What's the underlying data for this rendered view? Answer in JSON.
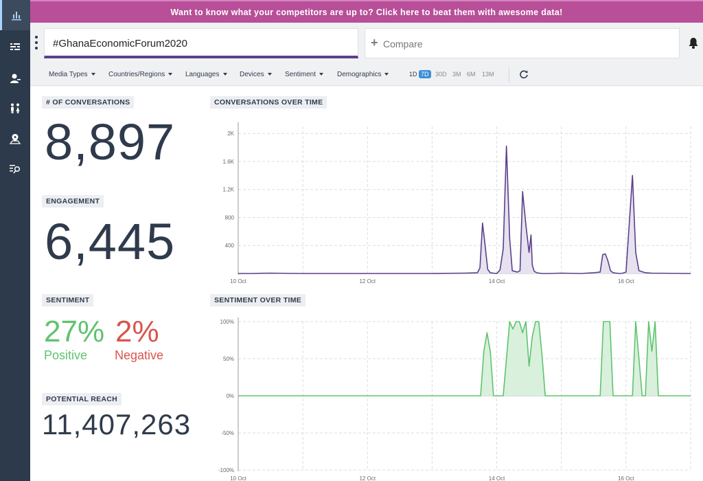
{
  "sidebar": {
    "items": [
      {
        "icon": "bar-chart-icon",
        "active": true
      },
      {
        "icon": "stream-icon",
        "active": false
      },
      {
        "icon": "user-profile-icon",
        "active": false
      },
      {
        "icon": "people-icon",
        "active": false
      },
      {
        "icon": "map-pin-icon",
        "active": false
      },
      {
        "icon": "list-search-icon",
        "active": false
      }
    ]
  },
  "banner": {
    "text": "Want to know what your competitors are up to? Click here to beat them with awesome data!"
  },
  "search": {
    "query": "#GhanaEconomicForum2020",
    "compare_label": "Compare",
    "compare_icon": "plus-icon"
  },
  "filters": [
    "Media Types",
    "Countries/Regions",
    "Languages",
    "Devices",
    "Sentiment",
    "Demographics"
  ],
  "ranges": [
    "1D",
    "7D",
    "30D",
    "3M",
    "6M",
    "13M"
  ],
  "active_range": "7D",
  "stats": {
    "conversations_label": "# OF CONVERSATIONS",
    "conversations_value": "8,897",
    "engagement_label": "ENGAGEMENT",
    "engagement_value": "6,445",
    "sentiment_label": "SENTIMENT",
    "positive_pct": "27%",
    "positive_label": "Positive",
    "negative_pct": "2%",
    "negative_label": "Negative",
    "reach_label": "POTENTIAL REACH",
    "reach_value": "11,407,263"
  },
  "colors": {
    "accent": "#5b3f8c",
    "banner": "#b84f98",
    "positive": "#5fc36e",
    "negative": "#d9544d",
    "sidebar": "#2d3a4b",
    "active_range": "#3a8fd8"
  },
  "chart_data": [
    {
      "type": "area",
      "title": "CONVERSATIONS OVER TIME",
      "color": "#5b3f8c",
      "fill": "#e6e2ef",
      "x_ticks": [
        "10 Oct",
        "12 Oct",
        "14 Oct",
        "16 Oct"
      ],
      "x_tick_pos": [
        0,
        2,
        4,
        6
      ],
      "xlim": [
        0,
        7
      ],
      "y_ticks": [
        400,
        800,
        1200,
        1600,
        2000
      ],
      "y_tick_labels": [
        "400",
        "800",
        "1.2K",
        "1.6K",
        "2K"
      ],
      "ylim": [
        0,
        2100
      ],
      "grid": true,
      "x": [
        0,
        0.2,
        0.5,
        1,
        1.5,
        2,
        2.5,
        3,
        3.5,
        3.7,
        3.74,
        3.78,
        3.82,
        3.86,
        3.9,
        3.95,
        4,
        4.05,
        4.1,
        4.15,
        4.2,
        4.24,
        4.28,
        4.32,
        4.36,
        4.4,
        4.45,
        4.5,
        4.53,
        4.55,
        4.58,
        4.62,
        4.66,
        4.7,
        4.75,
        4.8,
        5,
        5.3,
        5.5,
        5.6,
        5.64,
        5.68,
        5.72,
        5.76,
        5.8,
        5.85,
        5.9,
        5.95,
        6,
        6.1,
        6.15,
        6.2,
        6.3,
        6.4,
        7
      ],
      "y": [
        0,
        0,
        5,
        0,
        0,
        0,
        0,
        0,
        5,
        10,
        80,
        720,
        400,
        60,
        10,
        5,
        0,
        50,
        350,
        1820,
        500,
        40,
        30,
        20,
        40,
        1170,
        700,
        300,
        550,
        120,
        30,
        10,
        5,
        0,
        0,
        0,
        5,
        0,
        10,
        20,
        270,
        280,
        180,
        40,
        10,
        5,
        0,
        5,
        20,
        1400,
        300,
        40,
        10,
        5,
        0
      ]
    },
    {
      "type": "area",
      "title": "SENTIMENT OVER TIME",
      "color": "#5fc36e",
      "fill": "#d8f0dc",
      "x_ticks": [
        "10 Oct",
        "12 Oct",
        "14 Oct",
        "16 Oct"
      ],
      "x_tick_pos": [
        0,
        2,
        4,
        6
      ],
      "xlim": [
        0,
        7
      ],
      "y_ticks": [
        -100,
        -50,
        0,
        50,
        100
      ],
      "y_tick_labels": [
        "-100%",
        "-50%",
        "0%",
        "50%",
        "100%"
      ],
      "ylim": [
        -100,
        100
      ],
      "grid": true,
      "x": [
        0,
        0.5,
        1,
        2,
        3,
        3.6,
        3.75,
        3.8,
        3.85,
        3.9,
        3.95,
        4,
        4.1,
        4.2,
        4.25,
        4.3,
        4.35,
        4.4,
        4.45,
        4.5,
        4.55,
        4.6,
        4.65,
        4.7,
        4.75,
        4.8,
        4.85,
        4.9,
        5,
        5.3,
        5.6,
        5.65,
        5.7,
        5.75,
        5.8,
        5.85,
        6,
        6.1,
        6.15,
        6.2,
        6.25,
        6.3,
        6.35,
        6.4,
        6.45,
        6.5,
        7
      ],
      "y": [
        0,
        0,
        0,
        0,
        0,
        0,
        0,
        60,
        85,
        60,
        0,
        0,
        0,
        100,
        90,
        100,
        100,
        85,
        100,
        40,
        80,
        100,
        100,
        55,
        0,
        0,
        0,
        0,
        0,
        0,
        0,
        100,
        100,
        100,
        0,
        0,
        0,
        0,
        100,
        50,
        0,
        0,
        100,
        60,
        100,
        0,
        0
      ]
    }
  ]
}
